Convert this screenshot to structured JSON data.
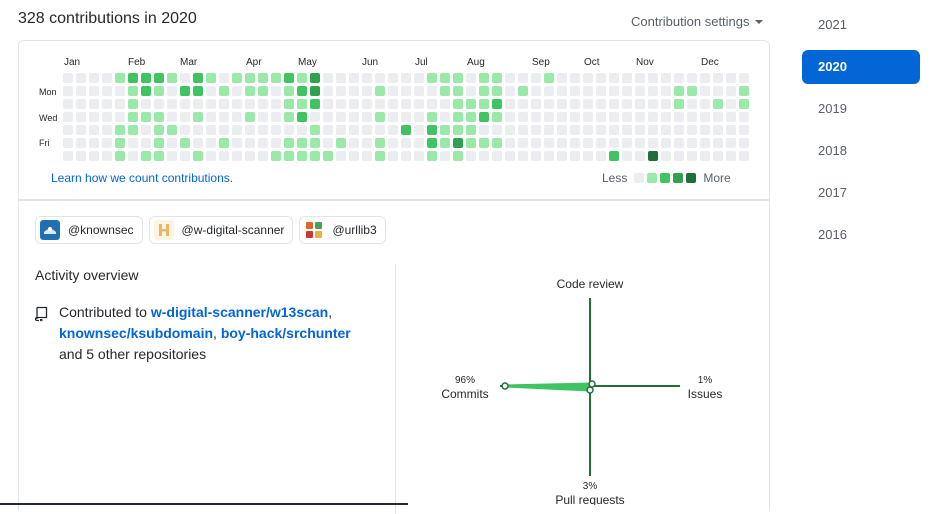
{
  "header": {
    "title": "328 contributions in 2020",
    "settings_label": "Contribution settings"
  },
  "calendar": {
    "months": [
      "Jan",
      "Feb",
      "Mar",
      "Apr",
      "May",
      "Jun",
      "Jul",
      "Aug",
      "Sep",
      "Oct",
      "Nov",
      "Dec"
    ],
    "weekdays": [
      "Mon",
      "Wed",
      "Fri"
    ],
    "learn_link": "Learn how we count contributions.",
    "legend_less": "Less",
    "legend_more": "More",
    "level_colors": [
      "#ebedf0",
      "#9be9a8",
      "#40c463",
      "#30a14e",
      "#216e39"
    ],
    "grid": [
      "0000000",
      "0000000",
      "0000000",
      "0000000",
      "1000111",
      "2111100",
      "2201001",
      "2101111",
      "1000100",
      "0200010",
      "2201001",
      "1000000",
      "0100010",
      "1000000",
      "1101000",
      "1100000",
      "1000001",
      "2111011",
      "1212011",
      "3320111",
      "0000001",
      "0000010",
      "0000000",
      "0000000",
      "0101011",
      "0000000",
      "0000200",
      "0000000",
      "1001221",
      "1100110",
      "1111131",
      "0011110",
      "1112010",
      "1121010",
      "0000000",
      "0100000",
      "0000000",
      "1000000",
      "0000000",
      "0000000",
      "0000000",
      "0000000",
      "0000002",
      "0000000",
      "0000000",
      "0000004",
      "0000000",
      "0110000",
      "0100000",
      "0000000",
      "0010000",
      "0000000",
      "0110000"
    ]
  },
  "orgs": [
    {
      "handle": "@knownsec",
      "icon": "knownsec-avatar",
      "color": "#1f6fb2"
    },
    {
      "handle": "@w-digital-scanner",
      "icon": "w-digital-scanner-avatar",
      "color": "#f4d9a6"
    },
    {
      "handle": "@urllib3",
      "icon": "urllib3-avatar",
      "color": "#e0662a"
    }
  ],
  "activity": {
    "title": "Activity overview",
    "prefix": "Contributed to ",
    "repos": [
      "w-digital-scanner/w13scan",
      "knownsec/ksubdomain",
      "boy-hack/srchunter"
    ],
    "sep1": ",",
    "sep2": ",",
    "suffix": "and 5 other repositories",
    "icon": "repo-icon"
  },
  "radar": {
    "code_review": {
      "label": "Code review",
      "percent": ""
    },
    "commits": {
      "label": "Commits",
      "percent": "96%"
    },
    "issues": {
      "label": "Issues",
      "percent": "1%"
    },
    "pull_requests": {
      "label": "Pull requests",
      "percent": "3%"
    },
    "axis_color": "#216e39",
    "fill_color": "#40c463"
  },
  "years": [
    "2021",
    "2020",
    "2019",
    "2018",
    "2017",
    "2016"
  ],
  "selected_year": "2020"
}
